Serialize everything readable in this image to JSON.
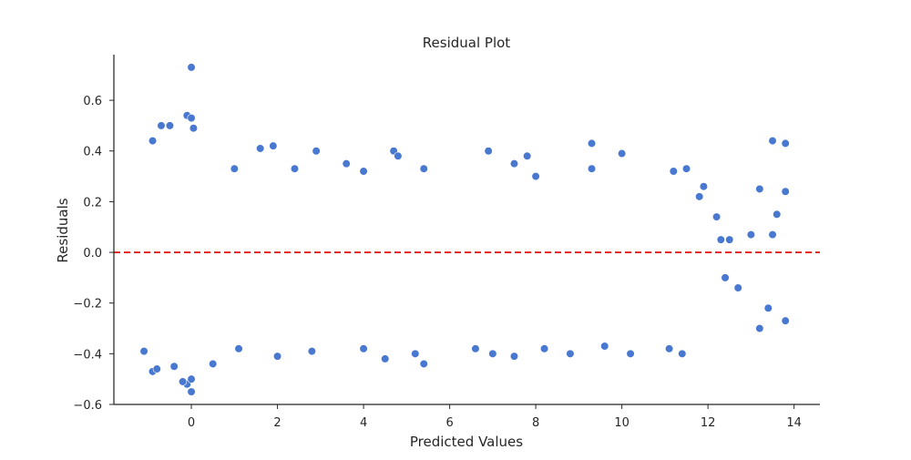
{
  "chart_data": {
    "type": "scatter",
    "title": "Residual Plot",
    "xlabel": "Predicted Values",
    "ylabel": "Residuals",
    "xlim": [
      -1.8,
      14.6
    ],
    "ylim": [
      -0.6,
      0.78
    ],
    "x_ticks": [
      0,
      2,
      4,
      6,
      8,
      10,
      12,
      14
    ],
    "y_ticks": [
      -0.6,
      -0.4,
      -0.2,
      0.0,
      0.2,
      0.4,
      0.6
    ],
    "x_tick_labels": [
      "0",
      "2",
      "4",
      "6",
      "8",
      "10",
      "12",
      "14"
    ],
    "y_tick_labels": [
      "−0.6",
      "−0.4",
      "−0.2",
      "0.0",
      "0.2",
      "0.4",
      "0.6"
    ],
    "grid": false,
    "reference_line": {
      "y": 0.0,
      "style": "dashed",
      "color": "#e41a1c"
    },
    "marker_color": "#4878cf",
    "marker_edge_color": "#ffffff",
    "series": [
      {
        "points": [
          [
            0.0,
            0.73
          ],
          [
            -0.1,
            0.54
          ],
          [
            0.0,
            0.53
          ],
          [
            -0.7,
            0.5
          ],
          [
            -0.5,
            0.5
          ],
          [
            0.05,
            0.49
          ],
          [
            -0.9,
            0.44
          ],
          [
            4.7,
            0.4
          ],
          [
            2.9,
            0.4
          ],
          [
            9.3,
            0.43
          ],
          [
            13.5,
            0.44
          ],
          [
            13.8,
            0.43
          ],
          [
            1.6,
            0.41
          ],
          [
            1.9,
            0.42
          ],
          [
            6.9,
            0.4
          ],
          [
            7.8,
            0.38
          ],
          [
            10.0,
            0.39
          ],
          [
            4.8,
            0.38
          ],
          [
            3.6,
            0.35
          ],
          [
            7.5,
            0.35
          ],
          [
            11.5,
            0.33
          ],
          [
            11.2,
            0.32
          ],
          [
            9.3,
            0.33
          ],
          [
            5.4,
            0.33
          ],
          [
            4.0,
            0.32
          ],
          [
            8.0,
            0.3
          ],
          [
            2.4,
            0.33
          ],
          [
            1.0,
            0.33
          ],
          [
            0.0,
            -0.55
          ],
          [
            -0.1,
            -0.52
          ],
          [
            0.0,
            -0.5
          ],
          [
            -0.2,
            -0.51
          ],
          [
            -0.9,
            -0.47
          ],
          [
            -0.8,
            -0.46
          ],
          [
            -0.4,
            -0.45
          ],
          [
            5.4,
            -0.44
          ],
          [
            0.5,
            -0.44
          ],
          [
            2.0,
            -0.41
          ],
          [
            4.5,
            -0.42
          ],
          [
            5.2,
            -0.4
          ],
          [
            7.0,
            -0.4
          ],
          [
            7.5,
            -0.41
          ],
          [
            8.8,
            -0.4
          ],
          [
            10.2,
            -0.4
          ],
          [
            11.1,
            -0.38
          ],
          [
            11.4,
            -0.4
          ],
          [
            9.6,
            -0.37
          ],
          [
            8.2,
            -0.38
          ],
          [
            6.6,
            -0.38
          ],
          [
            4.0,
            -0.38
          ],
          [
            2.8,
            -0.39
          ],
          [
            1.1,
            -0.38
          ],
          [
            -1.1,
            -0.39
          ],
          [
            13.2,
            -0.3
          ],
          [
            13.8,
            -0.27
          ],
          [
            13.4,
            -0.22
          ],
          [
            12.7,
            -0.14
          ],
          [
            12.4,
            -0.1
          ],
          [
            13.0,
            0.07
          ],
          [
            13.2,
            0.25
          ],
          [
            13.8,
            0.24
          ],
          [
            13.6,
            0.15
          ],
          [
            12.2,
            0.14
          ],
          [
            12.3,
            0.05
          ],
          [
            11.9,
            0.26
          ],
          [
            11.8,
            0.22
          ],
          [
            12.5,
            0.05
          ],
          [
            13.5,
            0.07
          ]
        ]
      }
    ]
  }
}
